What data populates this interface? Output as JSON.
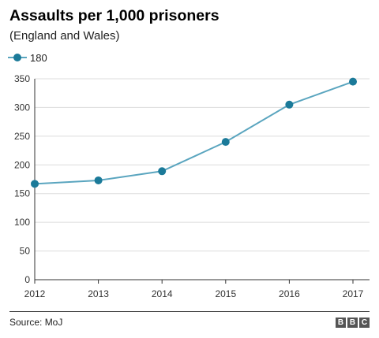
{
  "title": "Assaults per 1,000 prisoners",
  "subtitle": "(England and Wales)",
  "legend": {
    "label": "180"
  },
  "source": "Source: MoJ",
  "logo": [
    "B",
    "B",
    "C"
  ],
  "colors": {
    "line": "#5aa5bf",
    "marker": "#1b7a99",
    "grid": "#dcdcdc",
    "axis": "#333333"
  },
  "chart_data": {
    "type": "line",
    "x": [
      "2012",
      "2013",
      "2014",
      "2015",
      "2016",
      "2017"
    ],
    "series": [
      {
        "values": [
          167,
          173,
          189,
          240,
          305,
          345
        ]
      }
    ],
    "ylim": [
      0,
      350
    ],
    "yticks": [
      0,
      50,
      100,
      150,
      200,
      250,
      300,
      350
    ],
    "grid": true
  }
}
